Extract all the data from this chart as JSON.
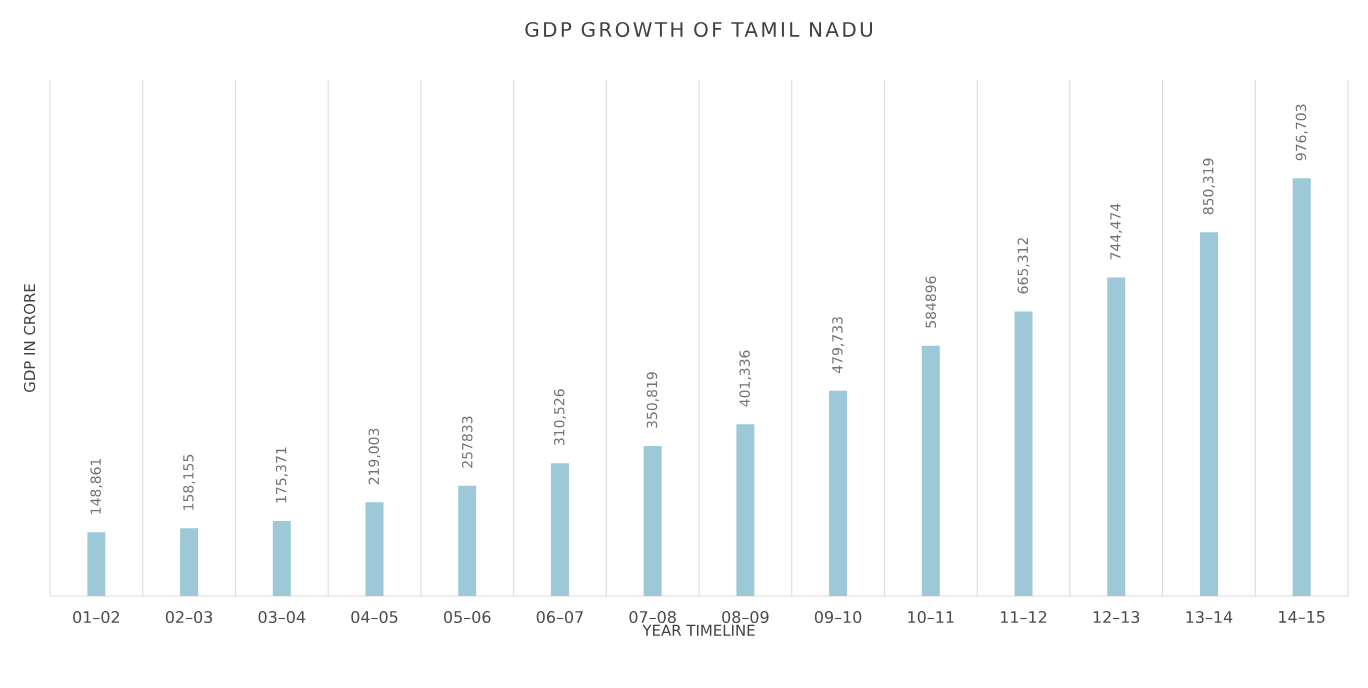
{
  "chart_data": {
    "type": "bar",
    "title": "GDP GROWTH OF TAMIL NADU",
    "xlabel": "YEAR TIMELINE",
    "ylabel": "GDP IN CRORE",
    "categories": [
      "01–02",
      "02–03",
      "03–04",
      "04–05",
      "05–06",
      "06–07",
      "07–08",
      "08–09",
      "09–10",
      "10–11",
      "11–12",
      "12–13",
      "13–14",
      "14–15"
    ],
    "values": [
      148861,
      158155,
      175371,
      219003,
      257833,
      310526,
      350819,
      401336,
      479733,
      584896,
      665312,
      744474,
      850319,
      976703
    ],
    "value_labels": [
      "148,861",
      "158,155",
      "175,371",
      "219,003",
      "257833",
      "310,526",
      "350,819",
      "401,336",
      "479,733",
      "584896",
      "665,312",
      "744,474",
      "850,319",
      "976,703"
    ],
    "color": "#9dc8d7",
    "grid": "x"
  }
}
